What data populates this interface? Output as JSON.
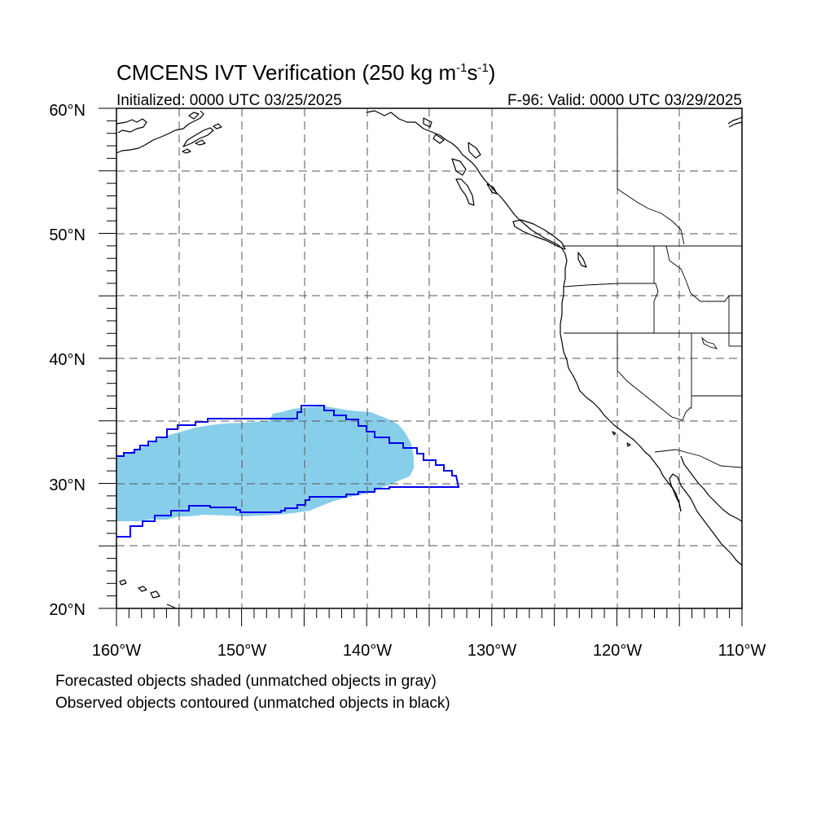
{
  "title": {
    "main": "CMCENS IVT Verification (250 kg m",
    "sup1": "-1",
    "mid": "s",
    "sup2": "-1",
    "close": ")"
  },
  "initialized": "Initialized: 0000 UTC 03/25/2025",
  "valid": "F-96: Valid: 0000 UTC 03/29/2025",
  "lat_labels": [
    "60°N",
    "50°N",
    "40°N",
    "30°N",
    "20°N"
  ],
  "lon_labels": [
    "160°W",
    "150°W",
    "140°W",
    "130°W",
    "120°W",
    "110°W"
  ],
  "notes": {
    "line1": "Forecasted objects shaded (unmatched objects in gray)",
    "line2": "Observed objects contoured (unmatched objects in black)"
  },
  "colors": {
    "forecast_fill": "#87ceeb",
    "observed_contour": "#0000ee",
    "coastline": "#000000",
    "grid": "#555555"
  },
  "map_extent": {
    "lon": [
      -160,
      -110
    ],
    "lat": [
      20,
      60
    ]
  }
}
